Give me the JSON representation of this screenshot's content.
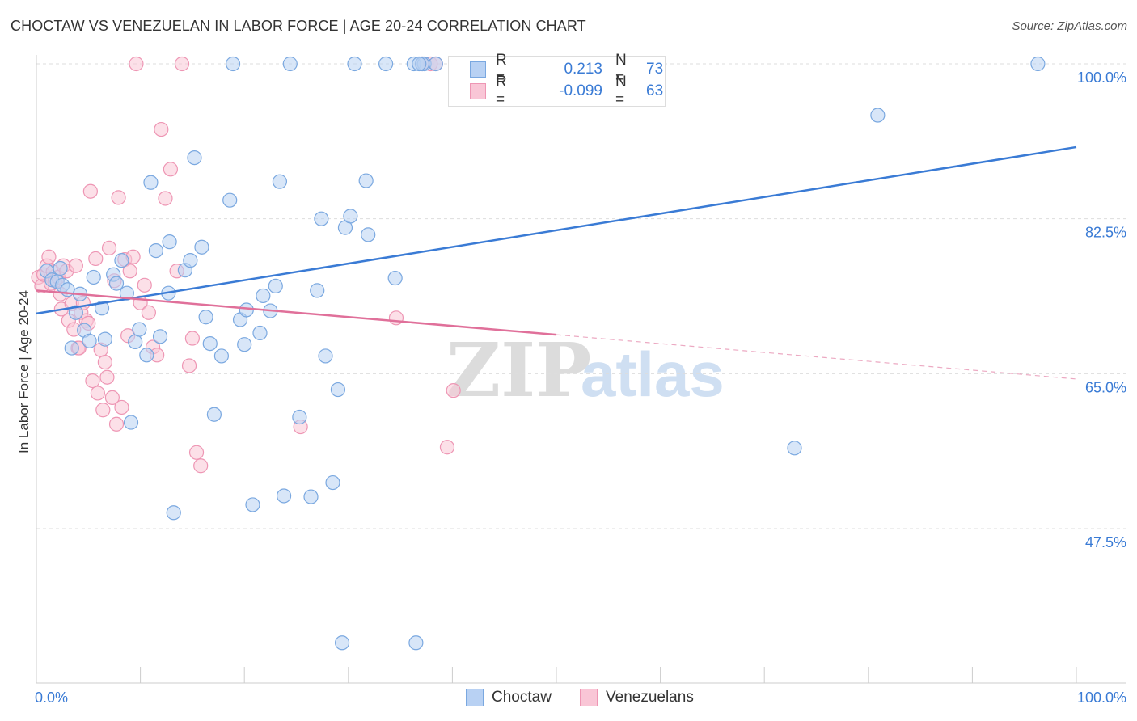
{
  "title": "CHOCTAW VS VENEZUELAN IN LABOR FORCE | AGE 20-24 CORRELATION CHART",
  "source": "Source: ZipAtlas.com",
  "legend": {
    "series": [
      {
        "name": "Choctaw",
        "r_label": "R =",
        "r_value": "0.213",
        "n_label": "N =",
        "n_value": "73",
        "fill": "#b8d1f3",
        "stroke": "#7aa8e0"
      },
      {
        "name": "Venezuelans",
        "r_label": "R =",
        "r_value": "-0.099",
        "n_label": "N =",
        "n_value": "63",
        "fill": "#f9c6d6",
        "stroke": "#ee96b4"
      }
    ]
  },
  "watermark": {
    "zip": "ZIP",
    "atlas": "atlas"
  },
  "chart_data": {
    "type": "scatter",
    "title": "CHOCTAW VS VENEZUELAN IN LABOR FORCE | AGE 20-24 CORRELATION CHART",
    "xlabel": "",
    "ylabel": "In Labor Force | Age 20-24",
    "xlim": [
      0,
      100
    ],
    "ylim": [
      30,
      102.5
    ],
    "x_tick_labels": [
      "0.0%",
      "100.0%"
    ],
    "y_ticks": [
      47.5,
      65.0,
      82.5,
      100.0
    ],
    "y_tick_labels": [
      "47.5%",
      "65.0%",
      "82.5%",
      "100.0%"
    ],
    "grid": true,
    "colors": {
      "choctaw": "#3a7bd5",
      "venezuelans": "#e0709a",
      "axis_label": "#3a7bd5"
    },
    "series": [
      {
        "name": "Choctaw",
        "trend": {
          "x": [
            0,
            100
          ],
          "y": [
            71.8,
            90.6
          ],
          "dashed_from": null
        },
        "points": [
          [
            1,
            76.6
          ],
          [
            1.5,
            75.6
          ],
          [
            2,
            75.4
          ],
          [
            2.3,
            76.9
          ],
          [
            2.5,
            75
          ],
          [
            3,
            74.5
          ],
          [
            3.4,
            67.9
          ],
          [
            3.8,
            71.9
          ],
          [
            4.2,
            74
          ],
          [
            4.6,
            69.9
          ],
          [
            5.1,
            68.7
          ],
          [
            5.5,
            75.9
          ],
          [
            6.3,
            72.4
          ],
          [
            6.6,
            68.9
          ],
          [
            7.4,
            76.2
          ],
          [
            7.7,
            75.2
          ],
          [
            8.2,
            77.8
          ],
          [
            8.7,
            74.1
          ],
          [
            9.1,
            59.5
          ],
          [
            9.5,
            68.6
          ],
          [
            9.9,
            70
          ],
          [
            10.6,
            67.1
          ],
          [
            11,
            86.6
          ],
          [
            11.5,
            78.9
          ],
          [
            11.9,
            69.2
          ],
          [
            12.7,
            74.1
          ],
          [
            12.8,
            79.9
          ],
          [
            13.2,
            49.3
          ],
          [
            14.3,
            76.7
          ],
          [
            14.8,
            77.8
          ],
          [
            15.2,
            89.4
          ],
          [
            15.9,
            79.3
          ],
          [
            16.3,
            71.4
          ],
          [
            16.7,
            68.4
          ],
          [
            17.1,
            60.4
          ],
          [
            17.8,
            67
          ],
          [
            18.6,
            84.6
          ],
          [
            18.9,
            100
          ],
          [
            19.6,
            71.1
          ],
          [
            20,
            68.3
          ],
          [
            20.2,
            72.2
          ],
          [
            20.8,
            50.2
          ],
          [
            21.5,
            69.6
          ],
          [
            21.8,
            73.8
          ],
          [
            22.5,
            72.1
          ],
          [
            23,
            74.9
          ],
          [
            23.4,
            86.7
          ],
          [
            23.8,
            51.2
          ],
          [
            24.4,
            100
          ],
          [
            25.3,
            60.1
          ],
          [
            26.4,
            51.1
          ],
          [
            27,
            74.4
          ],
          [
            27.4,
            82.5
          ],
          [
            27.8,
            67
          ],
          [
            28.5,
            52.7
          ],
          [
            29,
            63.2
          ],
          [
            29.7,
            81.5
          ],
          [
            30.2,
            82.8
          ],
          [
            30.6,
            100
          ],
          [
            31.7,
            86.8
          ],
          [
            31.9,
            80.7
          ],
          [
            33.6,
            100
          ],
          [
            34.5,
            75.8
          ],
          [
            36.3,
            100
          ],
          [
            37.3,
            100
          ],
          [
            38.4,
            100
          ],
          [
            29.4,
            34.6
          ],
          [
            36.5,
            34.6
          ],
          [
            72.9,
            56.6
          ],
          [
            80.9,
            94.2
          ],
          [
            96.3,
            100
          ],
          [
            37.1,
            100
          ],
          [
            36.8,
            100
          ]
        ]
      },
      {
        "name": "Venezuelans",
        "trend": {
          "x": [
            0,
            50,
            100
          ],
          "y": [
            74.4,
            69.4,
            64.4
          ],
          "dashed_from": 50
        },
        "points": [
          [
            0.2,
            75.9
          ],
          [
            0.5,
            74.9
          ],
          [
            0.7,
            76.2
          ],
          [
            1,
            77.2
          ],
          [
            1.2,
            78.2
          ],
          [
            1.4,
            75.2
          ],
          [
            1.6,
            76.5
          ],
          [
            1.8,
            75.5
          ],
          [
            2.1,
            75.9
          ],
          [
            2.3,
            74
          ],
          [
            2.4,
            72.3
          ],
          [
            2.6,
            77.2
          ],
          [
            2.9,
            76.6
          ],
          [
            3.1,
            71
          ],
          [
            3.4,
            72.9
          ],
          [
            3.6,
            70
          ],
          [
            3.8,
            77.2
          ],
          [
            4,
            67.9
          ],
          [
            4.3,
            71.9
          ],
          [
            4.5,
            73
          ],
          [
            4.8,
            71
          ],
          [
            5,
            70.7
          ],
          [
            5.2,
            85.6
          ],
          [
            5.4,
            64.2
          ],
          [
            5.7,
            78
          ],
          [
            5.9,
            62.8
          ],
          [
            6.2,
            67.7
          ],
          [
            6.4,
            60.9
          ],
          [
            6.6,
            66.3
          ],
          [
            6.8,
            64.6
          ],
          [
            7,
            79.2
          ],
          [
            7.3,
            62.3
          ],
          [
            7.5,
            75.5
          ],
          [
            7.7,
            59.3
          ],
          [
            7.9,
            84.9
          ],
          [
            8.2,
            61.2
          ],
          [
            8.5,
            77.9
          ],
          [
            8.8,
            69.3
          ],
          [
            9,
            76.6
          ],
          [
            9.3,
            78.2
          ],
          [
            9.6,
            100
          ],
          [
            10,
            73
          ],
          [
            10.4,
            75
          ],
          [
            10.8,
            71.9
          ],
          [
            11.2,
            68
          ],
          [
            11.6,
            67.1
          ],
          [
            12,
            92.6
          ],
          [
            12.4,
            84.8
          ],
          [
            12.9,
            88.1
          ],
          [
            13.5,
            76.6
          ],
          [
            14,
            100
          ],
          [
            14.7,
            65.9
          ],
          [
            15,
            69
          ],
          [
            15.4,
            56.1
          ],
          [
            15.8,
            54.6
          ],
          [
            25.4,
            59
          ],
          [
            34.6,
            71.3
          ],
          [
            37.9,
            100
          ],
          [
            39.5,
            56.7
          ],
          [
            40.1,
            63.1
          ],
          [
            38.4,
            100
          ],
          [
            37.1,
            100
          ],
          [
            4.1,
            67.9
          ]
        ]
      }
    ]
  }
}
